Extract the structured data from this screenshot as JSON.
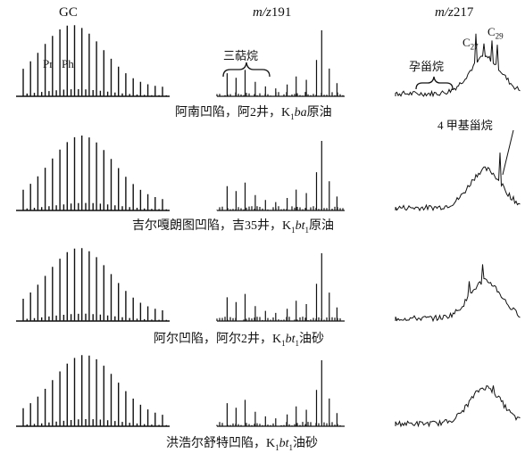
{
  "headers": {
    "gc": "GC",
    "m191_prefix": "m/z",
    "m191_value": "191",
    "m217_prefix": "m/z",
    "m217_value": "217"
  },
  "annotations": {
    "pr": "Pr",
    "ph": "Ph",
    "terpanes": "三萜烷",
    "pregnanes": "孕甾烷",
    "c27": "C",
    "c27_sub": "27",
    "c29": "C",
    "c29_sub": "29",
    "methyl_steranes": "4 甲基甾烷"
  },
  "rows": [
    {
      "basin": "阿南凹陷，阿2井，",
      "k": "K",
      "k_sub": "1",
      "fm": "ba",
      "fm_sub": "",
      "type": "原油"
    },
    {
      "basin": "吉尔嘎朗图凹陷，吉35井，",
      "k": "K",
      "k_sub": "1",
      "fm": "bt",
      "fm_sub": "1",
      "type": "原油"
    },
    {
      "basin": "阿尔凹陷，阿尔2井，",
      "k": "K",
      "k_sub": "1",
      "fm": "bt",
      "fm_sub": "1",
      "type": "油砂"
    },
    {
      "basin": "洪浩尔舒特凹陷，",
      "k": "K",
      "k_sub": "1",
      "fm": "bt",
      "fm_sub": "1",
      "type": "油砂"
    }
  ]
}
